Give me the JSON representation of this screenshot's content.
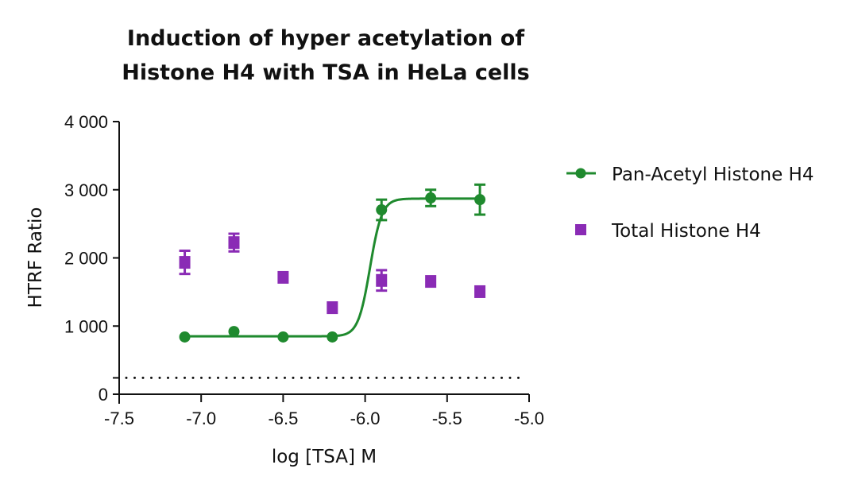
{
  "chart_data": {
    "type": "scatter",
    "title": "Induction of hyper acetylation of Histone H4 with TSA in HeLa cells",
    "title_lines": [
      "Induction of hyper acetylation of",
      "Histone H4 with TSA in HeLa cells"
    ],
    "xlabel": "log [TSA] M",
    "ylabel": "HTRF Ratio",
    "xlim": [
      -7.5,
      -5.0
    ],
    "ylim": [
      0,
      4000
    ],
    "x_ticks": [
      -7.5,
      -7.0,
      -6.5,
      -6.0,
      -5.5,
      -5.0
    ],
    "x_tick_labels": [
      "-7.5",
      "-7.0",
      "-6.5",
      "-6.0",
      "-5.5",
      "-5.0"
    ],
    "y_ticks": [
      0,
      1000,
      2000,
      3000,
      4000
    ],
    "y_tick_labels": [
      "0",
      "1 000",
      "2 000",
      "3 000",
      "4 000"
    ],
    "grid": false,
    "legend_position": "right",
    "reference_line": {
      "y": 240,
      "style": "dotted",
      "color": "#111111"
    },
    "series": [
      {
        "name": "Pan-Acetyl Histone H4",
        "color": "#1f8a2e",
        "marker": "circle",
        "fit": "sigmoidal dose-response",
        "fit_params": {
          "bottom": 850,
          "top": 2870,
          "logEC50": -5.97,
          "hill_slope": 12
        },
        "x": [
          -7.1,
          -6.8,
          -6.5,
          -6.2,
          -5.9,
          -5.6,
          -5.3
        ],
        "values": [
          840,
          920,
          840,
          840,
          2705,
          2880,
          2855
        ],
        "errors": [
          0,
          0,
          0,
          0,
          150,
          120,
          220
        ]
      },
      {
        "name": "Total Histone H4",
        "color": "#8a2bb5",
        "marker": "square",
        "x": [
          -7.1,
          -6.8,
          -6.5,
          -6.2,
          -5.9,
          -5.6,
          -5.3
        ],
        "values": [
          1935,
          2225,
          1715,
          1270,
          1670,
          1655,
          1505
        ],
        "errors": [
          170,
          130,
          0,
          0,
          150,
          0,
          0
        ]
      }
    ]
  }
}
